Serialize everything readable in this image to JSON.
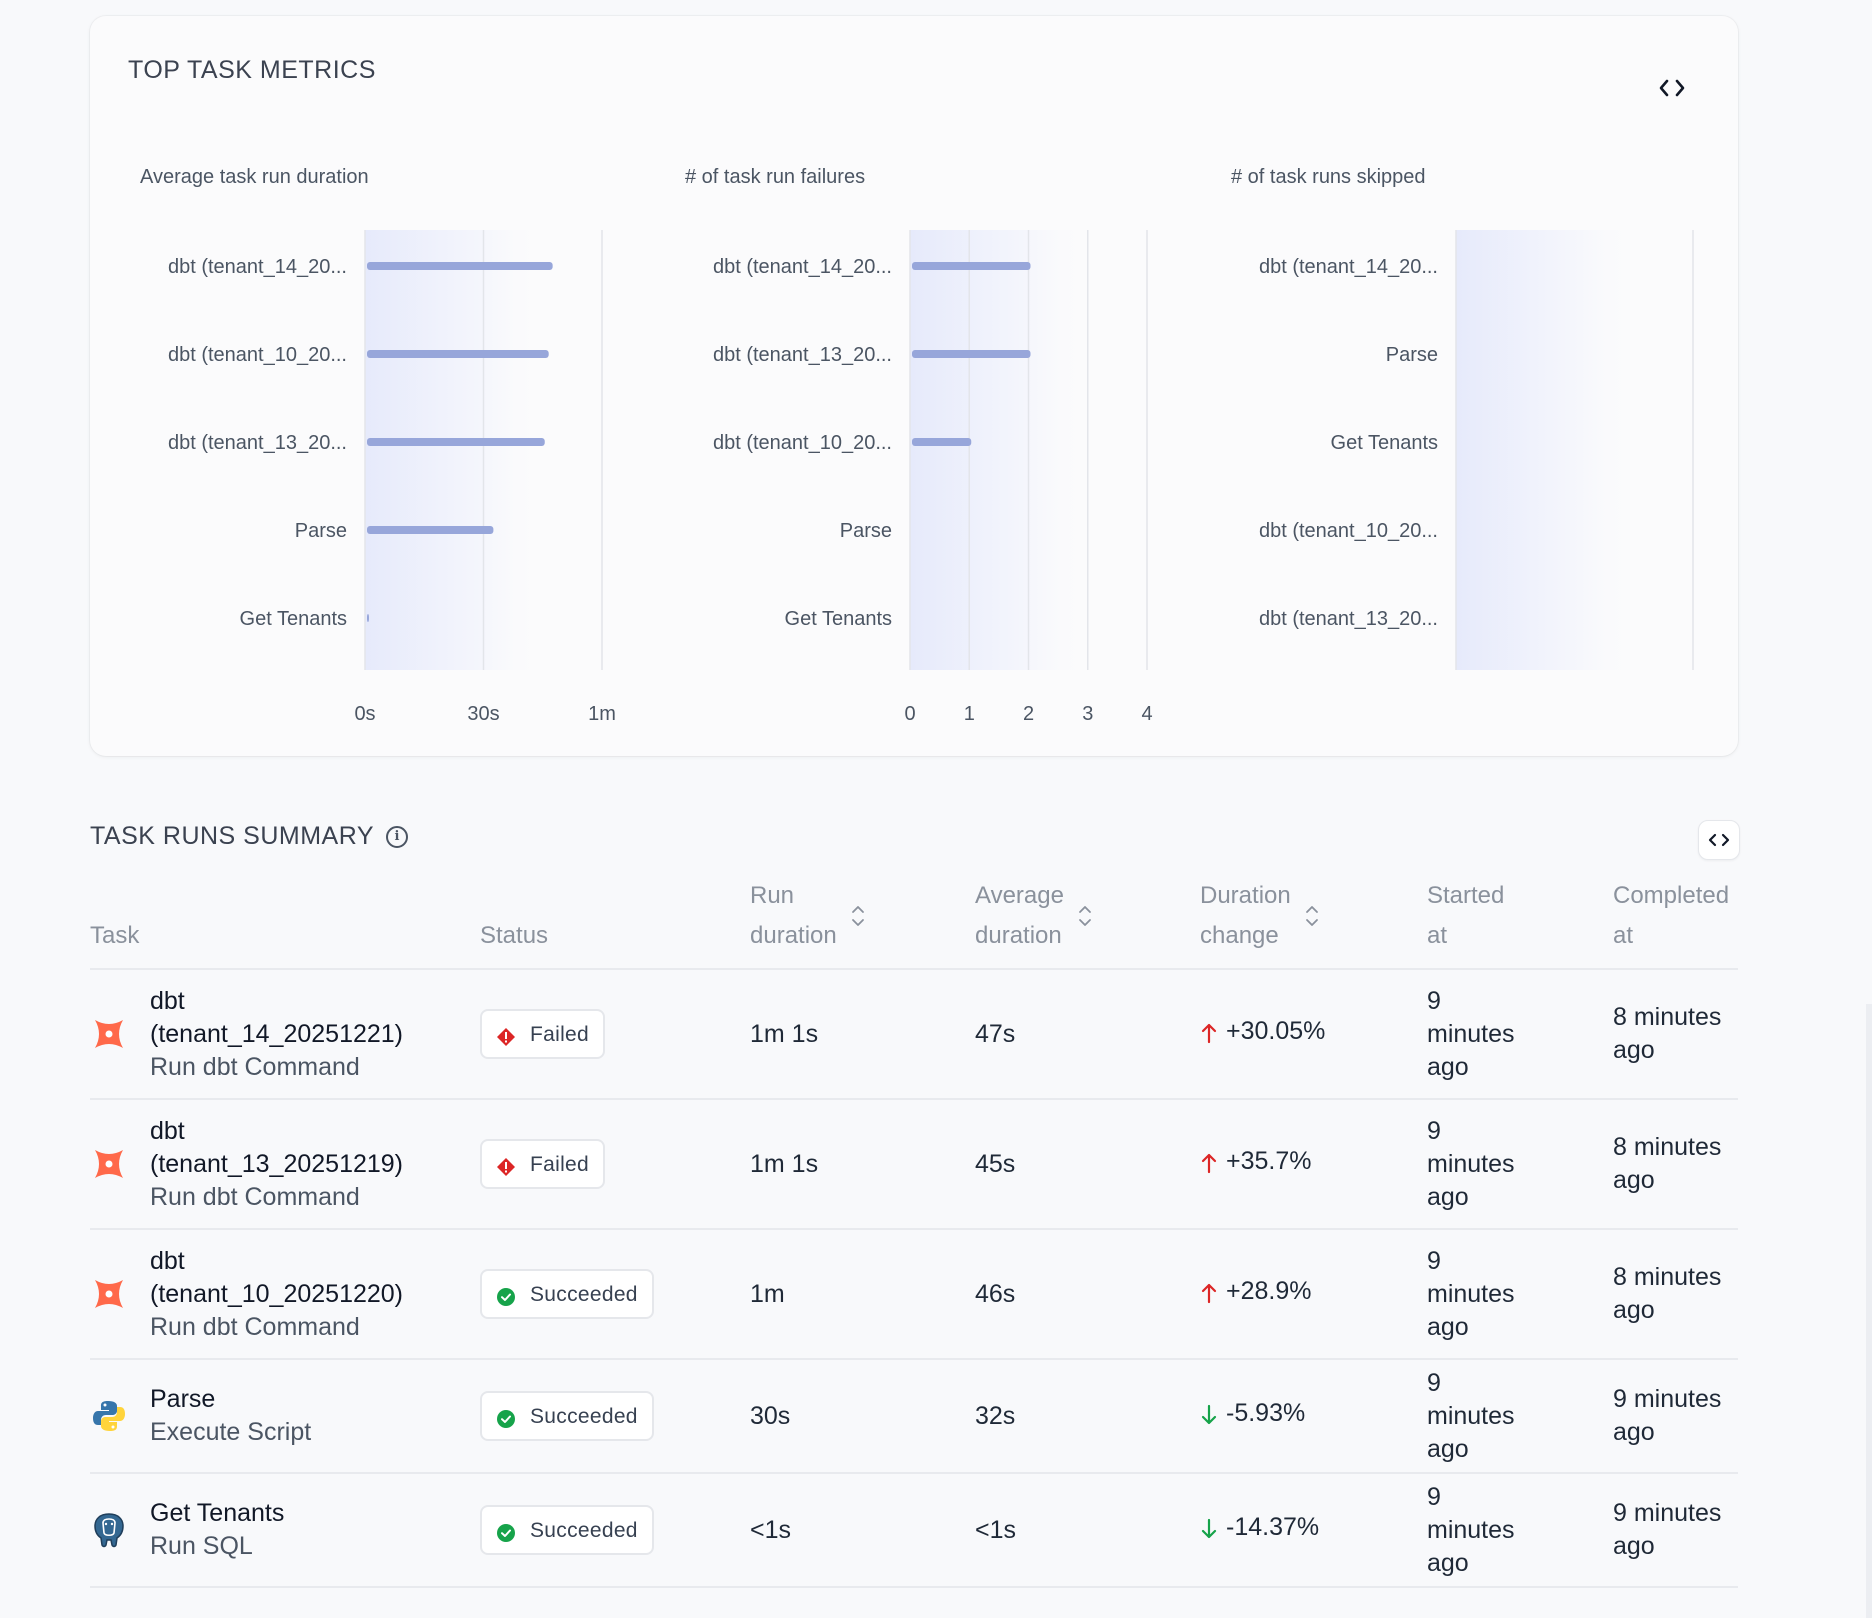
{
  "metrics": {
    "title": "TOP TASK METRICS",
    "toggle_icon": "code-icon"
  },
  "chart_data": [
    {
      "type": "bar",
      "orientation": "horizontal",
      "title": "Average task run duration",
      "categories": [
        "dbt (tenant_14_20...",
        "dbt (tenant_10_20...",
        "dbt (tenant_13_20...",
        "Parse",
        "Get Tenants"
      ],
      "values": [
        47,
        46,
        45,
        32,
        0.5
      ],
      "xlim": [
        0,
        60
      ],
      "ticks": [
        0,
        30,
        60
      ],
      "tick_labels": [
        "0s",
        "30s",
        "1m"
      ],
      "grid": true,
      "color": "#97a6da"
    },
    {
      "type": "bar",
      "orientation": "horizontal",
      "title": "# of task run failures",
      "categories": [
        "dbt (tenant_14_20...",
        "dbt (tenant_13_20...",
        "dbt (tenant_10_20...",
        "Parse",
        "Get Tenants"
      ],
      "values": [
        2,
        2,
        1,
        0,
        0
      ],
      "xlim": [
        0,
        4
      ],
      "ticks": [
        0,
        1,
        2,
        3,
        4
      ],
      "tick_labels": [
        "0",
        "1",
        "2",
        "3",
        "4"
      ],
      "grid": true,
      "color": "#97a6da"
    },
    {
      "type": "bar",
      "orientation": "horizontal",
      "title": "# of task runs skipped",
      "categories": [
        "dbt (tenant_14_20...",
        "Parse",
        "Get Tenants",
        "dbt (tenant_10_20...",
        "dbt (tenant_13_20..."
      ],
      "values": [
        0,
        0,
        0,
        0,
        0
      ],
      "xlim": [
        0,
        4
      ],
      "ticks": [],
      "tick_labels": [],
      "grid": false,
      "color": "#97a6da"
    }
  ],
  "summary": {
    "title": "TASK RUNS SUMMARY",
    "info_icon": "i",
    "columns": {
      "task": "Task",
      "status": "Status",
      "run_duration_1": "Run",
      "run_duration_2": "duration",
      "avg_duration_1": "Average",
      "avg_duration_2": "duration",
      "duration_change_1": "Duration",
      "duration_change_2": "change",
      "started_1": "Started",
      "started_2": "at",
      "completed_1": "Completed",
      "completed_2": "at"
    },
    "rows": [
      {
        "icon": "dbt-icon",
        "name_1": "dbt",
        "name_2": "(tenant_14_20251221)",
        "sub": "Run dbt Command",
        "status": "Failed",
        "status_type": "failed",
        "run_duration": "1m 1s",
        "avg_duration": "47s",
        "change_dir": "up",
        "change": "+30.05%",
        "started_1": "9",
        "started_2": "minutes",
        "started_3": "ago",
        "completed_1": "8 minutes",
        "completed_2": "ago"
      },
      {
        "icon": "dbt-icon",
        "name_1": "dbt",
        "name_2": "(tenant_13_20251219)",
        "sub": "Run dbt Command",
        "status": "Failed",
        "status_type": "failed",
        "run_duration": "1m 1s",
        "avg_duration": "45s",
        "change_dir": "up",
        "change": "+35.7%",
        "started_1": "9",
        "started_2": "minutes",
        "started_3": "ago",
        "completed_1": "8 minutes",
        "completed_2": "ago"
      },
      {
        "icon": "dbt-icon",
        "name_1": "dbt",
        "name_2": "(tenant_10_20251220)",
        "sub": "Run dbt Command",
        "status": "Succeeded",
        "status_type": "succeeded",
        "run_duration": "1m",
        "avg_duration": "46s",
        "change_dir": "up",
        "change": "+28.9%",
        "started_1": "9",
        "started_2": "minutes",
        "started_3": "ago",
        "completed_1": "8 minutes",
        "completed_2": "ago"
      },
      {
        "icon": "python-icon",
        "name_1": "Parse",
        "name_2": "",
        "sub": "Execute Script",
        "status": "Succeeded",
        "status_type": "succeeded",
        "run_duration": "30s",
        "avg_duration": "32s",
        "change_dir": "down",
        "change": "-5.93%",
        "started_1": "9",
        "started_2": "minutes",
        "started_3": "ago",
        "completed_1": "9 minutes",
        "completed_2": "ago"
      },
      {
        "icon": "postgres-icon",
        "name_1": "Get Tenants",
        "name_2": "",
        "sub": "Run SQL",
        "status": "Succeeded",
        "status_type": "succeeded",
        "run_duration": "<1s",
        "avg_duration": "<1s",
        "change_dir": "down",
        "change": "-14.37%",
        "started_1": "9",
        "started_2": "minutes",
        "started_3": "ago",
        "completed_1": "9 minutes",
        "completed_2": "ago"
      }
    ]
  },
  "colors": {
    "bar": "#97a6da",
    "failed": "#dc2626",
    "succeeded": "#16a34a",
    "up_arrow": "#dc2626",
    "down_arrow": "#16a34a",
    "dbt": "#ff694a"
  }
}
